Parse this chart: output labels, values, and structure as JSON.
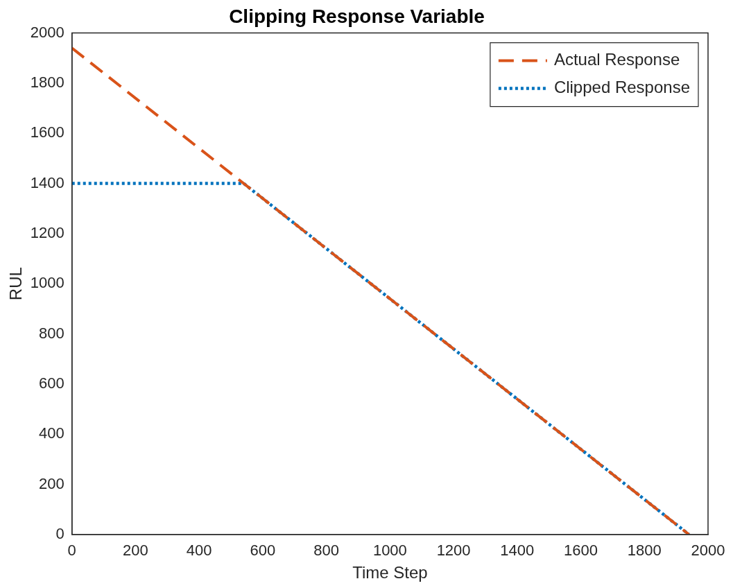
{
  "chart_data": {
    "type": "line",
    "title": "Clipping Response Variable",
    "xlabel": "Time Step",
    "ylabel": "RUL",
    "xlim": [
      0,
      2000
    ],
    "xticks": [
      0,
      200,
      400,
      600,
      800,
      1000,
      1200,
      1400,
      1600,
      1800,
      2000
    ],
    "ylim": [
      0,
      2000
    ],
    "yticks": [
      0,
      200,
      400,
      600,
      800,
      1000,
      1200,
      1400,
      1600,
      1800,
      2000
    ],
    "legend": "top right",
    "marker": "none",
    "series": [
      {
        "name": "Actual Response",
        "color": "#d95319",
        "line_style": "dashed",
        "x": [
          0,
          1940
        ],
        "values": [
          1940,
          0
        ]
      },
      {
        "name": "Clipped Response",
        "color": "#0072bd",
        "line_style": "dotted",
        "x": [
          0,
          540,
          1940
        ],
        "values": [
          1400,
          1400,
          0
        ]
      }
    ]
  }
}
